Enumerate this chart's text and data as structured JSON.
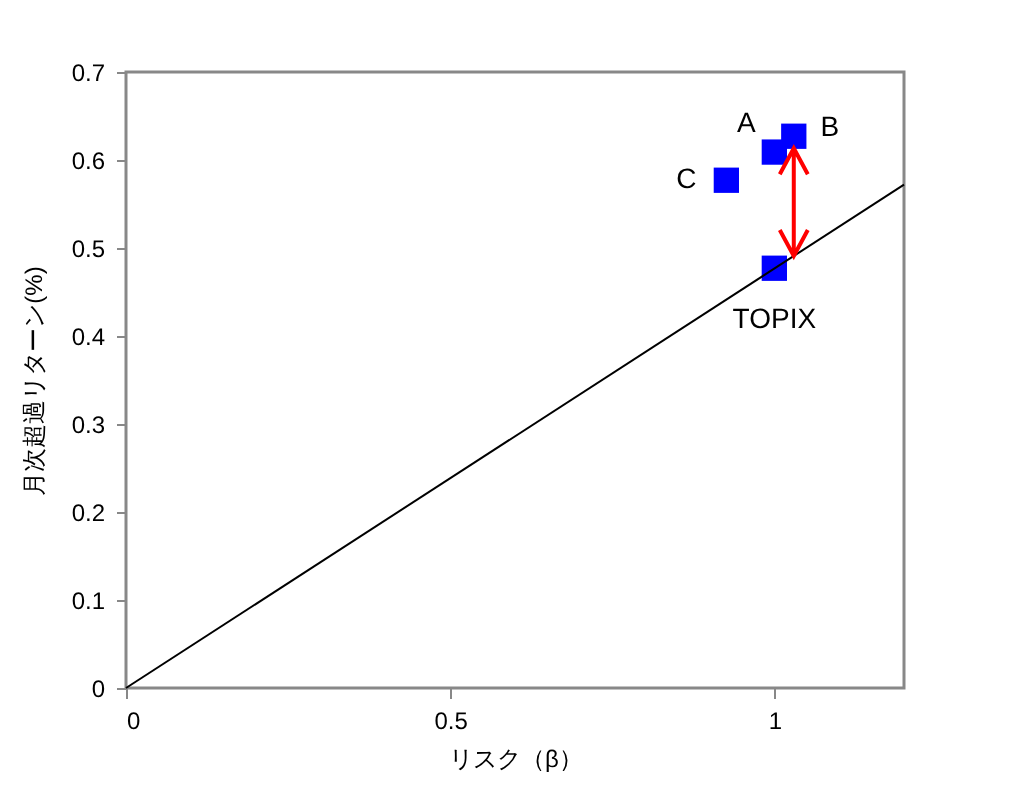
{
  "chart_data": {
    "type": "scatter",
    "xlabel": "リスク（β）",
    "ylabel": "月次超過リターン(%)",
    "grid": false,
    "xlim": [
      0,
      1.2
    ],
    "xticks": [
      {
        "value": 0,
        "label": "0"
      },
      0.5,
      {
        "value": 1,
        "label": "1"
      }
    ],
    "ylim": [
      0,
      0.7
    ],
    "yticks": [
      {
        "value": 0,
        "label": "0"
      },
      0.1,
      0.2,
      0.3,
      0.4,
      0.5,
      0.6,
      0.7
    ],
    "series": [
      {
        "color": "#0000ff",
        "marker": "square",
        "x": [
          1.0,
          1.03,
          0.926,
          1.0
        ],
        "values": [
          0.609,
          0.627,
          0.577,
          0.477
        ]
      },
      {
        "type": "line",
        "color": "#000000",
        "x": [
          0,
          1.2
        ],
        "values": [
          0,
          0.572
        ]
      }
    ],
    "annotations": [
      {
        "text": "A",
        "x": 1.0,
        "y": 0.609
      },
      {
        "text": "B",
        "x": 1.03,
        "y": 0.627
      },
      {
        "text": "C",
        "x": 0.926,
        "y": 0.577
      },
      {
        "text": "TOPIX",
        "x": 1.0,
        "y": 0.477
      }
    ]
  }
}
